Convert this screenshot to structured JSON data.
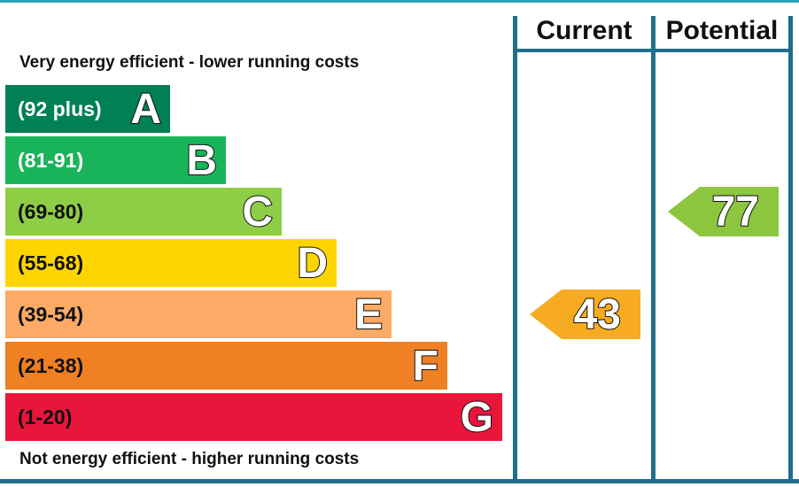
{
  "chart_data": {
    "type": "bar",
    "header": {
      "current": "Current",
      "potential": "Potential"
    },
    "top_caption": "Very energy efficient - lower running costs",
    "bottom_caption": "Not energy efficient - higher running costs",
    "bands": [
      {
        "letter": "A",
        "range": "(92 plus)",
        "min": 92,
        "max": null,
        "color": "#008054",
        "text_color": "#ffffff"
      },
      {
        "letter": "B",
        "range": "(81-91)",
        "min": 81,
        "max": 91,
        "color": "#19b459",
        "text_color": "#ffffff"
      },
      {
        "letter": "C",
        "range": "(69-80)",
        "min": 69,
        "max": 80,
        "color": "#8dce46",
        "text_color": "#111111"
      },
      {
        "letter": "D",
        "range": "(55-68)",
        "min": 55,
        "max": 68,
        "color": "#ffd500",
        "text_color": "#111111"
      },
      {
        "letter": "E",
        "range": "(39-54)",
        "min": 39,
        "max": 54,
        "color": "#fcaa65",
        "text_color": "#111111"
      },
      {
        "letter": "F",
        "range": "(21-38)",
        "min": 21,
        "max": 38,
        "color": "#ef8023",
        "text_color": "#111111"
      },
      {
        "letter": "G",
        "range": "(1-20)",
        "min": 1,
        "max": 20,
        "color": "#e9153b",
        "text_color": "#111111"
      }
    ],
    "ratings": {
      "current": {
        "value": 43,
        "label": "43",
        "band": "E",
        "color": "#f7ab21"
      },
      "potential": {
        "value": 77,
        "label": "77",
        "band": "C",
        "color": "#8cc63f"
      }
    }
  }
}
